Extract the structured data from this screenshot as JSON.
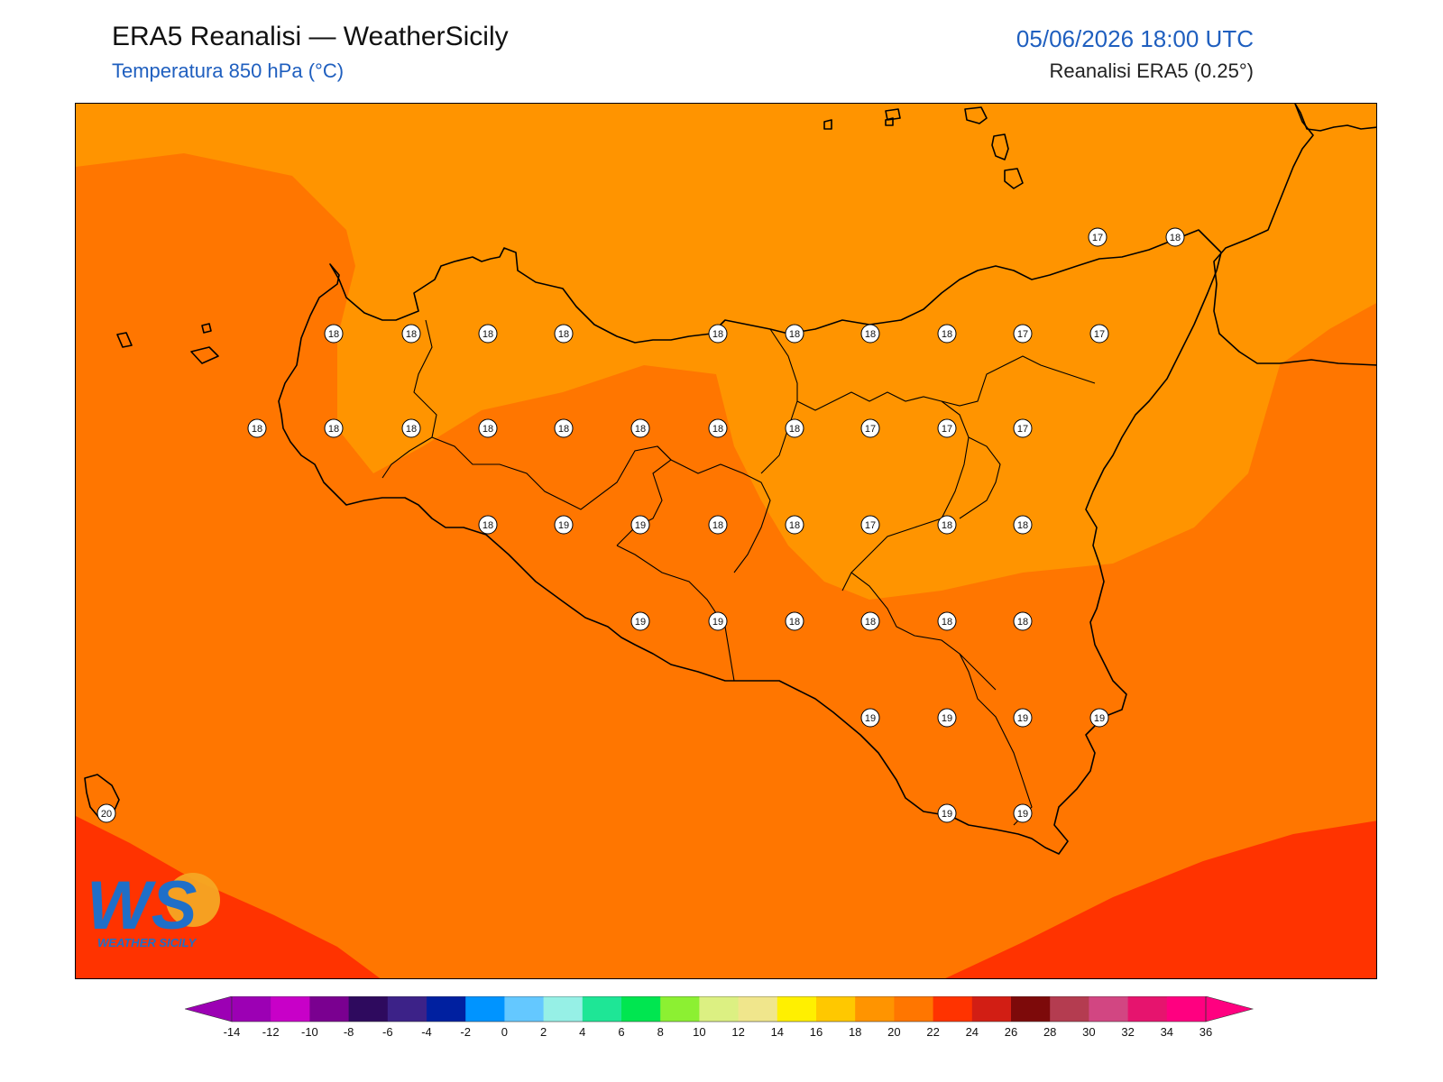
{
  "header": {
    "title": "ERA5 Reanalisi — WeatherSicily",
    "subtitle": "Temperatura 850 hPa (°C)",
    "datetime": "05/06/2026 18:00 UTC",
    "source": "Reanalisi ERA5 (0.25°)"
  },
  "map": {
    "variable": "Temperatura 850 hPa",
    "units": "°C",
    "fill_colors": {
      "16-18": "#ff9400",
      "18-20": "#ff7600",
      "20-22": "#ff3300"
    },
    "point_values": [
      {
        "label": "17"
      },
      {
        "label": "18"
      },
      {
        "label": "18"
      },
      {
        "label": "18"
      },
      {
        "label": "18"
      },
      {
        "label": "18"
      },
      {
        "label": "18"
      },
      {
        "label": "18"
      },
      {
        "label": "18"
      },
      {
        "label": "18"
      },
      {
        "label": "17"
      },
      {
        "label": "17"
      },
      {
        "label": "18"
      },
      {
        "label": "18"
      },
      {
        "label": "18"
      },
      {
        "label": "18"
      },
      {
        "label": "18"
      },
      {
        "label": "18"
      },
      {
        "label": "18"
      },
      {
        "label": "18"
      },
      {
        "label": "17"
      },
      {
        "label": "17"
      },
      {
        "label": "17"
      },
      {
        "label": "18"
      },
      {
        "label": "19"
      },
      {
        "label": "19"
      },
      {
        "label": "18"
      },
      {
        "label": "18"
      },
      {
        "label": "17"
      },
      {
        "label": "18"
      },
      {
        "label": "18"
      },
      {
        "label": "19"
      },
      {
        "label": "19"
      },
      {
        "label": "18"
      },
      {
        "label": "18"
      },
      {
        "label": "18"
      },
      {
        "label": "18"
      },
      {
        "label": "19"
      },
      {
        "label": "19"
      },
      {
        "label": "19"
      },
      {
        "label": "19"
      },
      {
        "label": "20"
      },
      {
        "label": "19"
      },
      {
        "label": "19"
      }
    ]
  },
  "logo": {
    "text": "WS",
    "caption": "WEATHER SICILY"
  },
  "colorbar": {
    "ticks": [
      "-14",
      "-12",
      "-10",
      "-8",
      "-6",
      "-4",
      "-2",
      "0",
      "2",
      "4",
      "6",
      "8",
      "10",
      "12",
      "14",
      "16",
      "18",
      "20",
      "22",
      "24",
      "26",
      "28",
      "30",
      "32",
      "34",
      "36"
    ],
    "colors": [
      "#9c00b4",
      "#c800c8",
      "#7a0090",
      "#2e0a5e",
      "#3c2288",
      "#0020a0",
      "#0094ff",
      "#64c8ff",
      "#96f0e6",
      "#1ee696",
      "#00e650",
      "#8cf032",
      "#dcf082",
      "#f0e68c",
      "#fff000",
      "#ffc800",
      "#ff9400",
      "#ff7600",
      "#ff3300",
      "#d21e14",
      "#7d0a0a",
      "#b43c50",
      "#d24682",
      "#e6146e",
      "#ff0080"
    ],
    "under_color": "#9c00b4",
    "over_color": "#ff0080"
  }
}
